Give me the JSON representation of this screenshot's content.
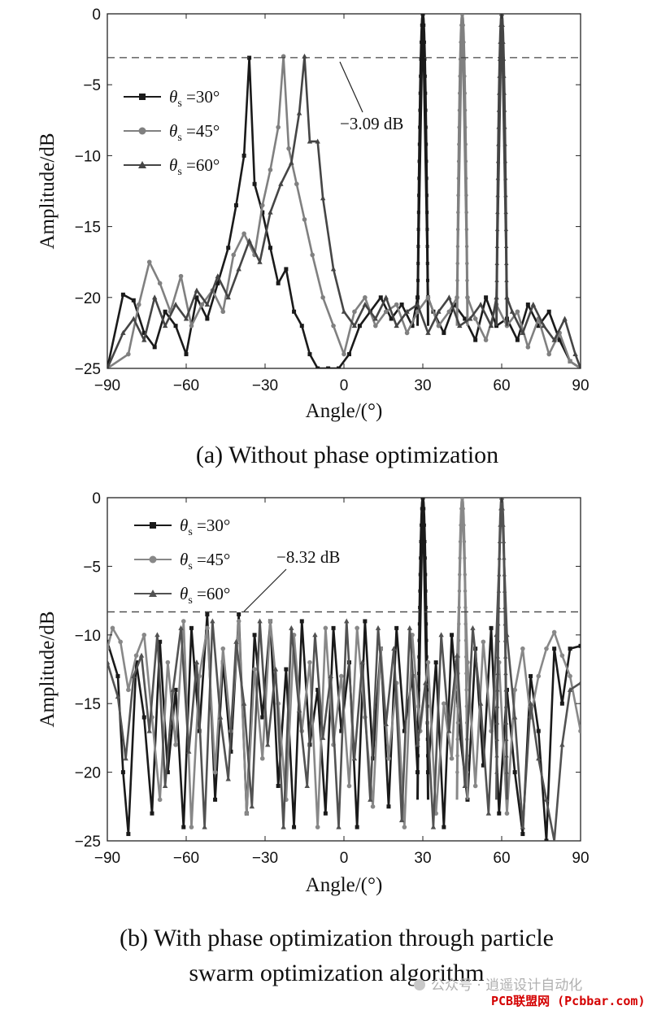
{
  "chart_data": [
    {
      "type": "line",
      "id": "a",
      "caption": "(a) Without phase optimization",
      "xlabel": "Angle/(°)",
      "ylabel": "Amplitude/dB",
      "xlim": [
        -90,
        90
      ],
      "ylim": [
        -25,
        0
      ],
      "xticks": [
        "-90",
        "-60",
        "-30",
        "0",
        "30",
        "60",
        "90"
      ],
      "yticks": [
        "0",
        "-5",
        "-10",
        "-15",
        "-20",
        "-25"
      ],
      "reference_line": {
        "y": -3.09,
        "label": "−3.09 dB",
        "style": "dashed"
      },
      "legend_location": "left",
      "series": [
        {
          "name_symbol": "θ",
          "name_sub": "s",
          "name_value": "=30°",
          "color": "#1a1a1a",
          "marker": "square",
          "main_lobe": 30,
          "x": [
            -90,
            -84,
            -80,
            -76,
            -72,
            -68,
            -64,
            -60,
            -56,
            -52,
            -48,
            -44,
            -41,
            -38,
            -36,
            -34,
            -31,
            -28,
            -25,
            -22,
            -19,
            -16,
            -13,
            -10,
            -6,
            -2,
            2,
            6,
            10,
            14,
            18,
            22,
            26,
            28,
            30,
            32,
            34,
            38,
            42,
            46,
            50,
            54,
            58,
            62,
            66,
            70,
            74,
            78,
            82,
            86,
            90
          ],
          "y": [
            -25,
            -19.8,
            -20.2,
            -22.5,
            -23.5,
            -21.0,
            -22.0,
            -24.0,
            -20.0,
            -21.5,
            -19.0,
            -16.5,
            -13.5,
            -10.0,
            -3.1,
            -12.0,
            -14.0,
            -16.5,
            -19.0,
            -18.0,
            -21.0,
            -22.0,
            -24.0,
            -25,
            -25,
            -25,
            -24.0,
            -22.0,
            -21.0,
            -20.0,
            -21.5,
            -20.5,
            -22.0,
            -20.0,
            0,
            -20.0,
            -21.0,
            -22.5,
            -20.5,
            -21.5,
            -23.0,
            -20.0,
            -22.0,
            -21.5,
            -23.0,
            -20.5,
            -22.0,
            -21.0,
            -23.0,
            -24.5,
            -25
          ]
        },
        {
          "name_symbol": "θ",
          "name_sub": "s",
          "name_value": "=45°",
          "color": "#808080",
          "marker": "circle",
          "main_lobe": 45,
          "x": [
            -90,
            -82,
            -78,
            -74,
            -70,
            -66,
            -62,
            -58,
            -54,
            -50,
            -46,
            -42,
            -38,
            -34,
            -31,
            -28,
            -25,
            -23,
            -21,
            -18,
            -15,
            -12,
            -8,
            -4,
            0,
            4,
            8,
            12,
            16,
            20,
            24,
            28,
            32,
            36,
            40,
            43,
            45,
            47,
            50,
            54,
            58,
            62,
            66,
            70,
            74,
            78,
            82,
            86,
            90
          ],
          "y": [
            -25,
            -24.0,
            -20.5,
            -17.5,
            -19.0,
            -21.0,
            -18.5,
            -22.0,
            -20.5,
            -19.5,
            -21.0,
            -17.0,
            -15.5,
            -17.0,
            -13.5,
            -11.0,
            -8.0,
            -3.0,
            -9.5,
            -12.0,
            -14.5,
            -17.0,
            -20.0,
            -22.0,
            -24.0,
            -21.0,
            -20.0,
            -22.0,
            -21.0,
            -20.5,
            -22.5,
            -21.0,
            -20.0,
            -22.0,
            -21.0,
            -20.0,
            0,
            -20.0,
            -21.5,
            -23.0,
            -20.5,
            -22.0,
            -21.0,
            -23.5,
            -21.5,
            -24.0,
            -22.5,
            -24.5,
            -25
          ]
        },
        {
          "name_symbol": "θ",
          "name_sub": "s",
          "name_value": "=60°",
          "color": "#454545",
          "marker": "triangle",
          "main_lobe": 60,
          "x": [
            -90,
            -84,
            -80,
            -76,
            -72,
            -68,
            -64,
            -60,
            -56,
            -52,
            -48,
            -44,
            -40,
            -36,
            -32,
            -28,
            -24,
            -20,
            -17,
            -15,
            -13,
            -10,
            -8,
            -4,
            0,
            4,
            8,
            12,
            16,
            20,
            24,
            28,
            32,
            36,
            40,
            44,
            48,
            52,
            56,
            58,
            60,
            62,
            64,
            68,
            72,
            76,
            80,
            84,
            88,
            90
          ],
          "y": [
            -25,
            -22.5,
            -21.5,
            -23.0,
            -20.0,
            -22.0,
            -20.5,
            -21.5,
            -19.5,
            -20.5,
            -18.5,
            -20.0,
            -18.0,
            -16.0,
            -17.5,
            -14.0,
            -12.0,
            -10.5,
            -7.0,
            -3.0,
            -9.0,
            -9.0,
            -13.0,
            -18.0,
            -21.0,
            -22.0,
            -20.5,
            -21.5,
            -20.0,
            -22.0,
            -21.0,
            -20.5,
            -22.5,
            -21.0,
            -20.0,
            -22.0,
            -21.5,
            -20.5,
            -22.0,
            -20.0,
            0,
            -20.0,
            -21.0,
            -22.5,
            -20.5,
            -22.0,
            -23.0,
            -21.5,
            -24.0,
            -25
          ]
        }
      ]
    },
    {
      "type": "line",
      "id": "b",
      "caption_line1": "(b) With phase optimization through particle",
      "caption_line2": "swarm optimization algorithm",
      "xlabel": "Angle/(°)",
      "ylabel": "Amplitude/dB",
      "xlim": [
        -90,
        90
      ],
      "ylim": [
        -25,
        0
      ],
      "xticks": [
        "-90",
        "-60",
        "-30",
        "0",
        "30",
        "60",
        "90"
      ],
      "yticks": [
        "0",
        "-5",
        "-10",
        "-15",
        "-20",
        "-25"
      ],
      "reference_line": {
        "y": -8.32,
        "label": "−8.32 dB",
        "style": "dashed"
      },
      "legend_location": "top-left",
      "series": [
        {
          "name_symbol": "θ",
          "name_sub": "s",
          "name_value": "=30°",
          "color": "#1a1a1a",
          "marker": "square",
          "main_lobe": 30,
          "x": [
            -90,
            -86,
            -84,
            -82,
            -79,
            -76,
            -73,
            -70,
            -67,
            -64,
            -61,
            -58,
            -55,
            -52,
            -49,
            -46,
            -43,
            -40,
            -37,
            -34,
            -31,
            -28,
            -25,
            -22,
            -19,
            -16,
            -13,
            -10,
            -7,
            -4,
            -1,
            2,
            5,
            8,
            11,
            14,
            17,
            20,
            23,
            26,
            28,
            30,
            32,
            35,
            38,
            41,
            44,
            47,
            50,
            53,
            56,
            59,
            62,
            65,
            68,
            71,
            74,
            77,
            80,
            83,
            86,
            90
          ],
          "y": [
            -10.5,
            -13.0,
            -20.0,
            -24.5,
            -12.0,
            -16.0,
            -23.0,
            -10.5,
            -20.0,
            -14.0,
            -24.0,
            -9.5,
            -17.0,
            -8.5,
            -22.0,
            -12.0,
            -18.5,
            -8.5,
            -23.0,
            -10.0,
            -16.0,
            -9.0,
            -21.0,
            -12.5,
            -24.0,
            -9.0,
            -18.0,
            -14.0,
            -23.0,
            -9.5,
            -17.0,
            -12.0,
            -24.0,
            -9.0,
            -19.0,
            -11.0,
            -22.5,
            -9.5,
            -17.0,
            -13.0,
            -20.0,
            0,
            -20.0,
            -12.0,
            -24.0,
            -10.0,
            -17.0,
            -22.0,
            -11.0,
            -19.5,
            -9.5,
            -23.0,
            -14.0,
            -20.0,
            -24.5,
            -13.0,
            -17.0,
            -25,
            -11.0,
            -15.0,
            -11.0,
            -10.8
          ]
        },
        {
          "name_symbol": "θ",
          "name_sub": "s",
          "name_value": "=45°",
          "color": "#888888",
          "marker": "circle",
          "main_lobe": 45,
          "x": [
            -90,
            -88,
            -85,
            -82,
            -79,
            -76,
            -73,
            -70,
            -67,
            -64,
            -61,
            -58,
            -55,
            -52,
            -49,
            -46,
            -43,
            -40,
            -37,
            -34,
            -31,
            -28,
            -25,
            -22,
            -19,
            -16,
            -13,
            -10,
            -7,
            -4,
            -1,
            2,
            5,
            8,
            11,
            14,
            17,
            20,
            23,
            26,
            29,
            32,
            35,
            38,
            41,
            43,
            45,
            47,
            50,
            53,
            56,
            59,
            62,
            65,
            68,
            71,
            74,
            77,
            80,
            83,
            86,
            90
          ],
          "y": [
            -11.0,
            -9.5,
            -10.5,
            -14.0,
            -11.5,
            -10.0,
            -16.0,
            -22.0,
            -12.0,
            -18.0,
            -9.0,
            -24.0,
            -13.0,
            -9.5,
            -20.0,
            -11.0,
            -17.0,
            -9.0,
            -23.0,
            -12.5,
            -19.0,
            -9.0,
            -15.0,
            -22.0,
            -10.0,
            -17.0,
            -12.0,
            -24.0,
            -9.5,
            -18.0,
            -13.0,
            -21.0,
            -9.5,
            -16.0,
            -22.5,
            -11.0,
            -19.0,
            -13.5,
            -24.0,
            -10.0,
            -17.0,
            -12.0,
            -23.0,
            -15.0,
            -19.0,
            -12.0,
            0,
            -12.0,
            -21.0,
            -10.5,
            -17.0,
            -12.0,
            -23.0,
            -14.0,
            -11.0,
            -16.0,
            -13.0,
            -11.0,
            -9.8,
            -11.5,
            -13.0,
            -17.0
          ]
        },
        {
          "name_symbol": "θ",
          "name_sub": "s",
          "name_value": "=60°",
          "color": "#525252",
          "marker": "triangle",
          "main_lobe": 60,
          "x": [
            -90,
            -86,
            -83,
            -80,
            -77,
            -74,
            -71,
            -68,
            -65,
            -62,
            -59,
            -56,
            -53,
            -50,
            -47,
            -44,
            -41,
            -38,
            -35,
            -32,
            -29,
            -26,
            -23,
            -20,
            -17,
            -14,
            -11,
            -8,
            -5,
            -2,
            1,
            4,
            7,
            10,
            13,
            16,
            19,
            22,
            25,
            28,
            31,
            34,
            37,
            40,
            43,
            46,
            49,
            52,
            55,
            58,
            60,
            62,
            65,
            68,
            71,
            74,
            77,
            80,
            83,
            86,
            90
          ],
          "y": [
            -12.0,
            -14.5,
            -19.0,
            -13.0,
            -11.5,
            -17.0,
            -10.0,
            -21.0,
            -14.0,
            -9.5,
            -18.5,
            -12.0,
            -24.0,
            -9.0,
            -16.0,
            -20.5,
            -10.5,
            -15.0,
            -22.5,
            -9.0,
            -18.0,
            -12.5,
            -24.0,
            -9.5,
            -15.5,
            -21.0,
            -10.0,
            -17.5,
            -13.0,
            -24.0,
            -9.0,
            -19.0,
            -12.0,
            -22.0,
            -9.5,
            -16.5,
            -11.0,
            -23.5,
            -9.5,
            -18.0,
            -13.5,
            -24.0,
            -10.0,
            -17.0,
            -11.5,
            -21.0,
            -9.5,
            -15.0,
            -23.0,
            -10.0,
            0,
            -10.0,
            -16.0,
            -24.0,
            -15.0,
            -19.0,
            -22.0,
            -25,
            -18.0,
            -14.0,
            -13.5
          ]
        }
      ]
    }
  ],
  "watermark": {
    "line1": "公众号 · 逍遥设计自动化",
    "line2": "PCB联盟网 (Pcbbar.com)"
  }
}
